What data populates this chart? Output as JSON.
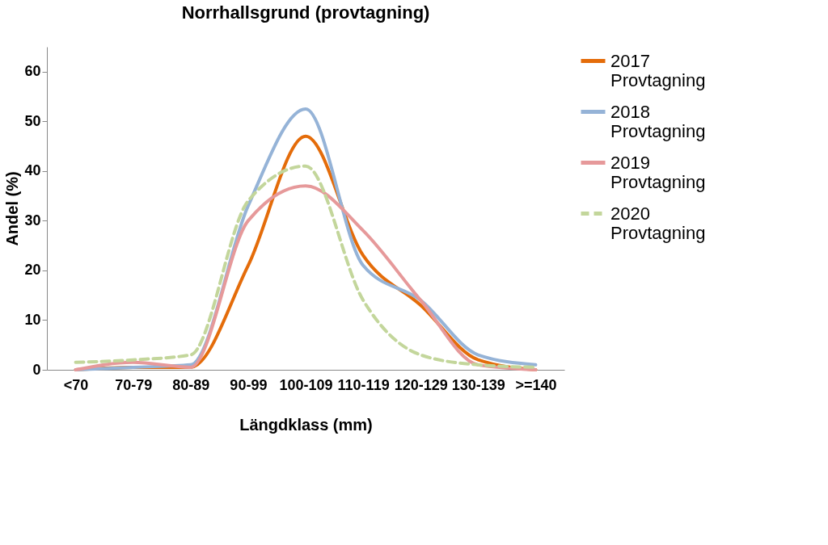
{
  "chart_data": {
    "type": "line",
    "title": "Norrhallsgrund (provtagning)",
    "xlabel": "Längdklass (mm)",
    "ylabel": "Andel (%)",
    "categories": [
      "<70",
      "70-79",
      "80-89",
      "90-99",
      "100-109",
      "110-119",
      "120-129",
      "130-139",
      ">=140"
    ],
    "series": [
      {
        "name": "2017 Provtagning",
        "color": "#e46c0a",
        "values": [
          0,
          0.5,
          0.5,
          21,
          47,
          23,
          13,
          2,
          0
        ]
      },
      {
        "name": "2018 Provtagning",
        "color": "#95b3d7",
        "values": [
          0,
          0.5,
          1,
          33,
          52.5,
          21,
          14,
          3,
          1
        ]
      },
      {
        "name": "2019 Provtagning",
        "color": "#e6999a",
        "values": [
          0,
          1.5,
          0.5,
          30,
          37,
          28,
          14,
          1,
          0
        ]
      },
      {
        "name": "2020 Provtagning",
        "color": "#c3d69b",
        "values": [
          1.5,
          2,
          3,
          34,
          41,
          14,
          3,
          1,
          0.5
        ],
        "line_style": "dashed"
      }
    ],
    "ylim": [
      0,
      65
    ],
    "yticks": [
      0,
      10,
      20,
      30,
      40,
      50,
      60
    ],
    "grid": false,
    "legend": "top right",
    "marker": "none"
  }
}
